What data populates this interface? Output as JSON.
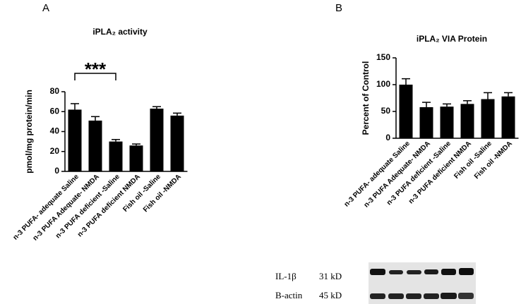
{
  "chart_data": [
    {
      "type": "bar",
      "panel": "A",
      "title": "iPLA₂ activity",
      "y_label": "pmol/mg protein/min",
      "categories": [
        "n-3 PUFA- adequate Saline",
        "n-3 PUFA Adequate- NMDA",
        "n-3 PUFA deficient -Saline",
        "n-3 PUFA deficient NMDA",
        "Fish oil -Saline",
        "Fish oil -NMDA"
      ],
      "values": [
        62,
        51,
        30,
        26,
        63,
        56
      ],
      "errors": [
        6,
        4,
        2,
        1.5,
        2,
        2.5
      ],
      "color": "#000000",
      "ylim": [
        0,
        80
      ],
      "yticks": [
        0,
        20,
        40,
        60,
        80
      ],
      "annotation": "***"
    },
    {
      "type": "bar",
      "panel": "B",
      "title": "iPLA₂ VIA  Protein",
      "y_label": "Percent of Control",
      "categories": [
        "n-3 PUFA- adequate Saline",
        "n-3 PUFA Adequate- NMDA",
        "n-3 PUFA deficient -Saline",
        "n-3 PUFA deficient NMDA",
        "Fish oil -Saline",
        "Fish oil -NMDA"
      ],
      "values": [
        100,
        58,
        59,
        64,
        73,
        78
      ],
      "errors": [
        11,
        9,
        5,
        6,
        12,
        7
      ],
      "color": "#000000",
      "ylim": [
        0,
        150
      ],
      "yticks": [
        0,
        50,
        100,
        150
      ]
    }
  ],
  "blot": {
    "rows": [
      {
        "protein": "IL-1β",
        "size": "31 kD"
      },
      {
        "protein": "B-actin",
        "size": "45 kD"
      }
    ]
  }
}
